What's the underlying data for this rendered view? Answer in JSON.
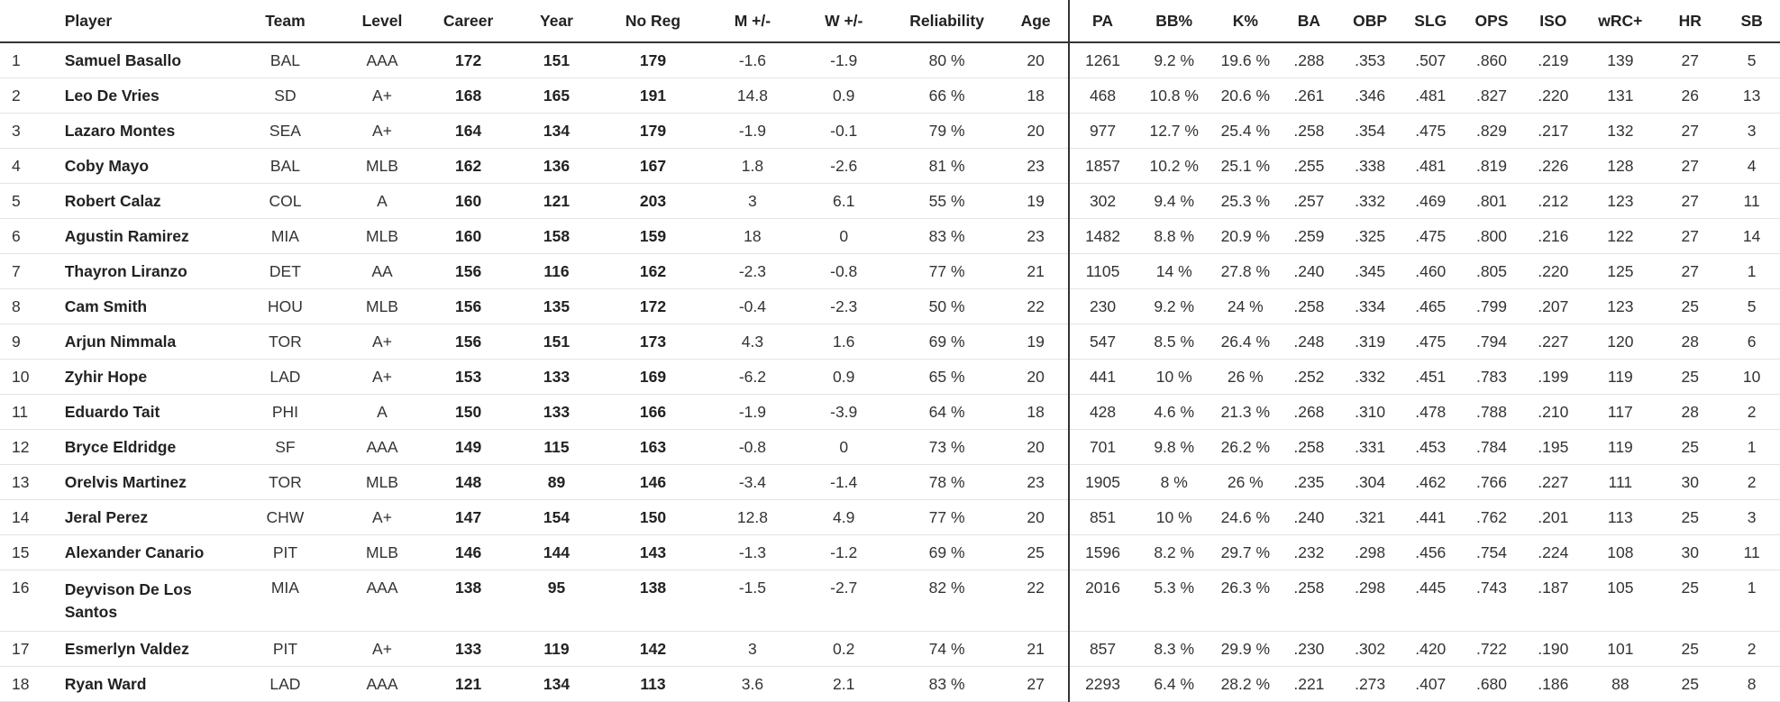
{
  "columns": [
    "",
    "Player",
    "Team",
    "Level",
    "Career",
    "Year",
    "No Reg",
    "M +/-",
    "W +/-",
    "Reliability",
    "Age",
    "PA",
    "BB%",
    "K%",
    "BA",
    "OBP",
    "SLG",
    "OPS",
    "ISO",
    "wRC+",
    "HR",
    "SB"
  ],
  "rows": [
    [
      "1",
      "Samuel Basallo",
      "BAL",
      "AAA",
      "172",
      "151",
      "179",
      "-1.6",
      "-1.9",
      "80 %",
      "20",
      "1261",
      "9.2 %",
      "19.6 %",
      ".288",
      ".353",
      ".507",
      ".860",
      ".219",
      "139",
      "27",
      "5"
    ],
    [
      "2",
      "Leo De Vries",
      "SD",
      "A+",
      "168",
      "165",
      "191",
      "14.8",
      "0.9",
      "66 %",
      "18",
      "468",
      "10.8 %",
      "20.6 %",
      ".261",
      ".346",
      ".481",
      ".827",
      ".220",
      "131",
      "26",
      "13"
    ],
    [
      "3",
      "Lazaro Montes",
      "SEA",
      "A+",
      "164",
      "134",
      "179",
      "-1.9",
      "-0.1",
      "79 %",
      "20",
      "977",
      "12.7 %",
      "25.4 %",
      ".258",
      ".354",
      ".475",
      ".829",
      ".217",
      "132",
      "27",
      "3"
    ],
    [
      "4",
      "Coby Mayo",
      "BAL",
      "MLB",
      "162",
      "136",
      "167",
      "1.8",
      "-2.6",
      "81 %",
      "23",
      "1857",
      "10.2 %",
      "25.1 %",
      ".255",
      ".338",
      ".481",
      ".819",
      ".226",
      "128",
      "27",
      "4"
    ],
    [
      "5",
      "Robert Calaz",
      "COL",
      "A",
      "160",
      "121",
      "203",
      "3",
      "6.1",
      "55 %",
      "19",
      "302",
      "9.4 %",
      "25.3 %",
      ".257",
      ".332",
      ".469",
      ".801",
      ".212",
      "123",
      "27",
      "11"
    ],
    [
      "6",
      "Agustin Ramirez",
      "MIA",
      "MLB",
      "160",
      "158",
      "159",
      "18",
      "0",
      "83 %",
      "23",
      "1482",
      "8.8 %",
      "20.9 %",
      ".259",
      ".325",
      ".475",
      ".800",
      ".216",
      "122",
      "27",
      "14"
    ],
    [
      "7",
      "Thayron Liranzo",
      "DET",
      "AA",
      "156",
      "116",
      "162",
      "-2.3",
      "-0.8",
      "77 %",
      "21",
      "1105",
      "14 %",
      "27.8 %",
      ".240",
      ".345",
      ".460",
      ".805",
      ".220",
      "125",
      "27",
      "1"
    ],
    [
      "8",
      "Cam Smith",
      "HOU",
      "MLB",
      "156",
      "135",
      "172",
      "-0.4",
      "-2.3",
      "50 %",
      "22",
      "230",
      "9.2 %",
      "24 %",
      ".258",
      ".334",
      ".465",
      ".799",
      ".207",
      "123",
      "25",
      "5"
    ],
    [
      "9",
      "Arjun Nimmala",
      "TOR",
      "A+",
      "156",
      "151",
      "173",
      "4.3",
      "1.6",
      "69 %",
      "19",
      "547",
      "8.5 %",
      "26.4 %",
      ".248",
      ".319",
      ".475",
      ".794",
      ".227",
      "120",
      "28",
      "6"
    ],
    [
      "10",
      "Zyhir Hope",
      "LAD",
      "A+",
      "153",
      "133",
      "169",
      "-6.2",
      "0.9",
      "65 %",
      "20",
      "441",
      "10 %",
      "26 %",
      ".252",
      ".332",
      ".451",
      ".783",
      ".199",
      "119",
      "25",
      "10"
    ],
    [
      "11",
      "Eduardo Tait",
      "PHI",
      "A",
      "150",
      "133",
      "166",
      "-1.9",
      "-3.9",
      "64 %",
      "18",
      "428",
      "4.6 %",
      "21.3 %",
      ".268",
      ".310",
      ".478",
      ".788",
      ".210",
      "117",
      "28",
      "2"
    ],
    [
      "12",
      "Bryce Eldridge",
      "SF",
      "AAA",
      "149",
      "115",
      "163",
      "-0.8",
      "0",
      "73 %",
      "20",
      "701",
      "9.8 %",
      "26.2 %",
      ".258",
      ".331",
      ".453",
      ".784",
      ".195",
      "119",
      "25",
      "1"
    ],
    [
      "13",
      "Orelvis Martinez",
      "TOR",
      "MLB",
      "148",
      "89",
      "146",
      "-3.4",
      "-1.4",
      "78 %",
      "23",
      "1905",
      "8 %",
      "26 %",
      ".235",
      ".304",
      ".462",
      ".766",
      ".227",
      "111",
      "30",
      "2"
    ],
    [
      "14",
      "Jeral Perez",
      "CHW",
      "A+",
      "147",
      "154",
      "150",
      "12.8",
      "4.9",
      "77 %",
      "20",
      "851",
      "10 %",
      "24.6 %",
      ".240",
      ".321",
      ".441",
      ".762",
      ".201",
      "113",
      "25",
      "3"
    ],
    [
      "15",
      "Alexander Canario",
      "PIT",
      "MLB",
      "146",
      "144",
      "143",
      "-1.3",
      "-1.2",
      "69 %",
      "25",
      "1596",
      "8.2 %",
      "29.7 %",
      ".232",
      ".298",
      ".456",
      ".754",
      ".224",
      "108",
      "30",
      "11"
    ],
    [
      "16",
      "Deyvison De Los Santos",
      "MIA",
      "AAA",
      "138",
      "95",
      "138",
      "-1.5",
      "-2.7",
      "82 %",
      "22",
      "2016",
      "5.3 %",
      "26.3 %",
      ".258",
      ".298",
      ".445",
      ".743",
      ".187",
      "105",
      "25",
      "1"
    ],
    [
      "17",
      "Esmerlyn Valdez",
      "PIT",
      "A+",
      "133",
      "119",
      "142",
      "3",
      "0.2",
      "74 %",
      "21",
      "857",
      "8.3 %",
      "29.9 %",
      ".230",
      ".302",
      ".420",
      ".722",
      ".190",
      "101",
      "25",
      "2"
    ],
    [
      "18",
      "Ryan Ward",
      "LAD",
      "AAA",
      "121",
      "134",
      "113",
      "3.6",
      "2.1",
      "83 %",
      "27",
      "2293",
      "6.4 %",
      "28.2 %",
      ".221",
      ".273",
      ".407",
      ".680",
      ".186",
      "88",
      "25",
      "8"
    ]
  ]
}
